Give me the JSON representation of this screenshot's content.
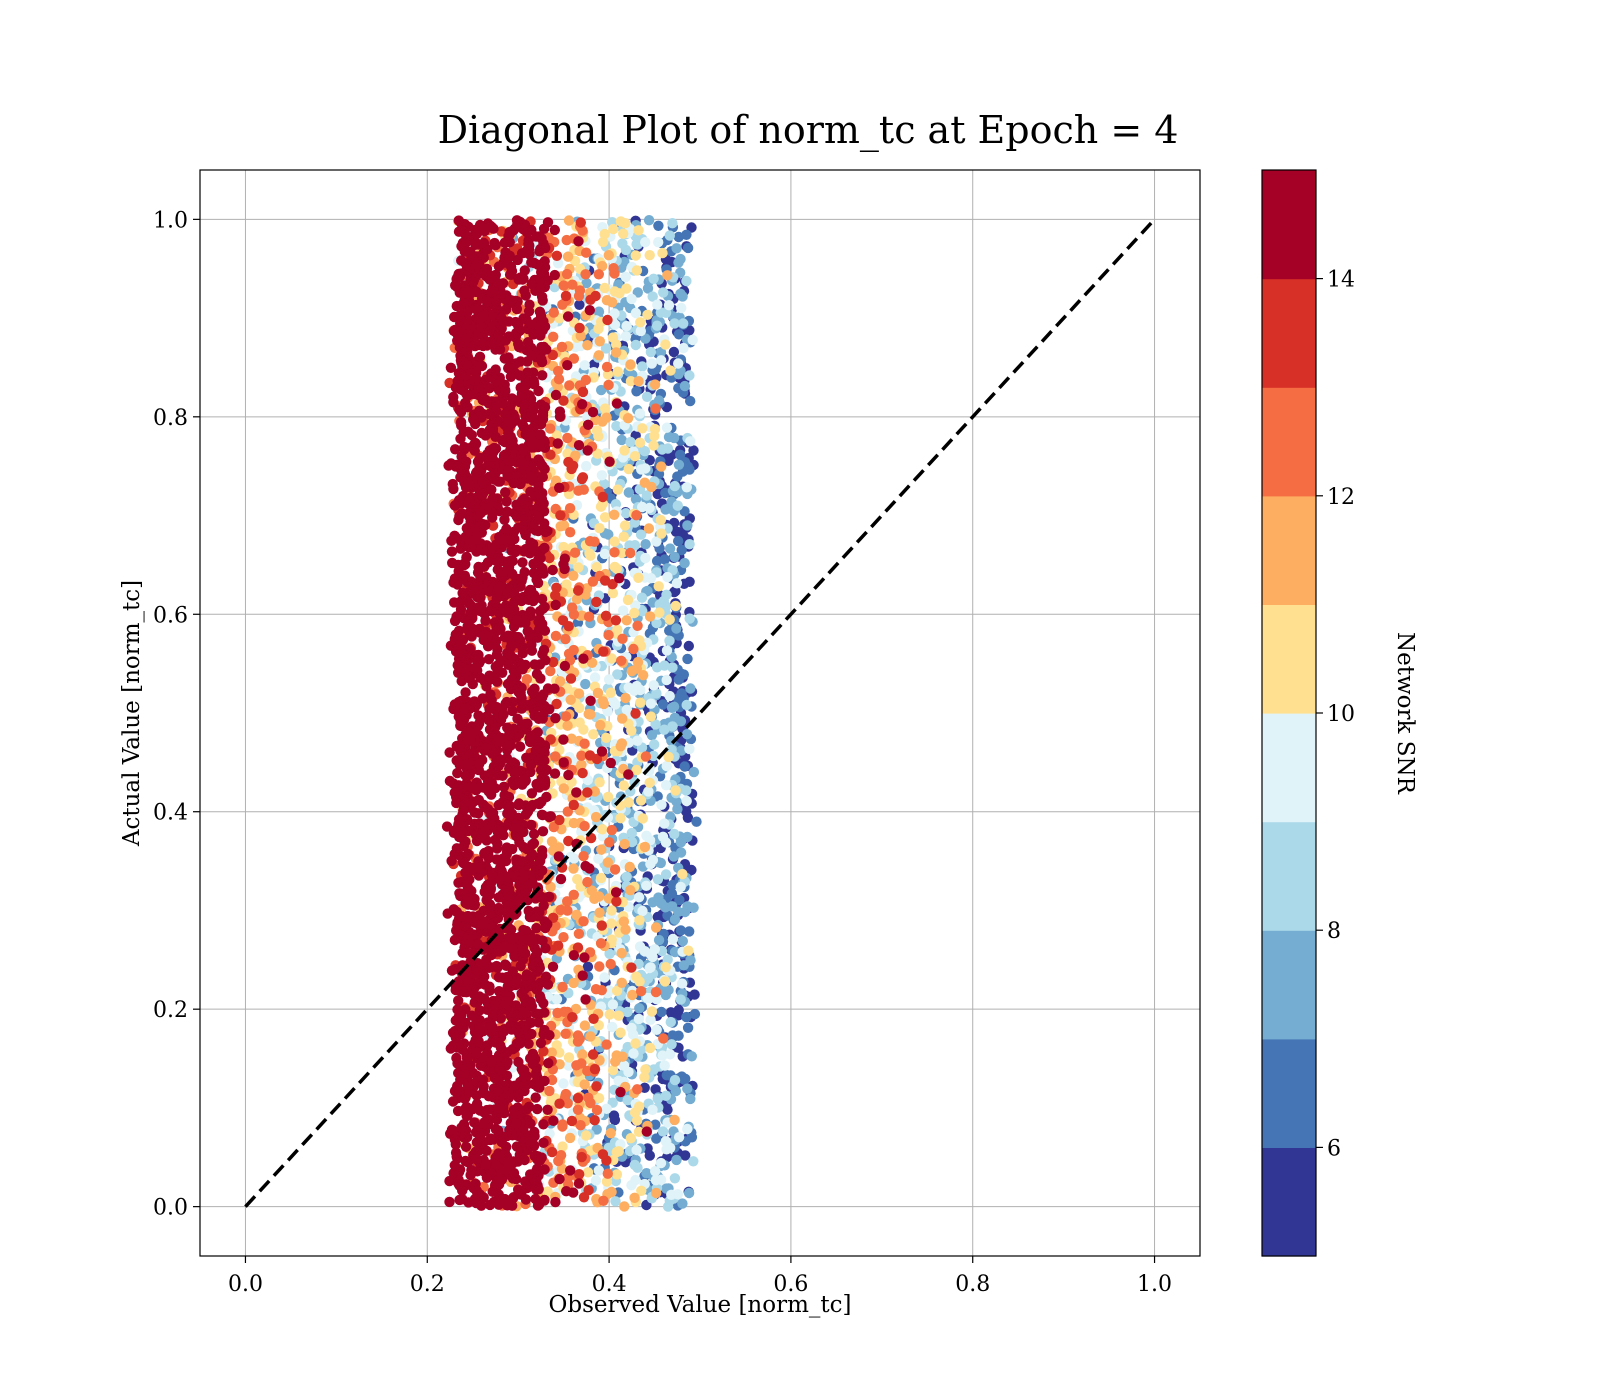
{
  "chart_data": {
    "type": "scatter",
    "title": "Diagonal Plot of norm_tc at Epoch = 4",
    "xlabel": "Observed Value [norm_tc]",
    "ylabel": "Actual Value [norm_tc]",
    "xlim": [
      -0.05,
      1.05
    ],
    "ylim": [
      -0.05,
      1.05
    ],
    "xticks": [
      0.0,
      0.2,
      0.4,
      0.6,
      0.8,
      1.0
    ],
    "yticks": [
      0.0,
      0.2,
      0.4,
      0.6,
      0.8,
      1.0
    ],
    "xtick_labels": [
      "0.0",
      "0.2",
      "0.4",
      "0.6",
      "0.8",
      "1.0"
    ],
    "ytick_labels": [
      "0.0",
      "0.2",
      "0.4",
      "0.6",
      "0.8",
      "1.0"
    ],
    "grid": true,
    "reference_line": {
      "x": [
        0.0,
        1.0
      ],
      "y": [
        0.0,
        1.0
      ],
      "style": "dashed",
      "color": "#000000"
    },
    "scatter_summary": {
      "x_core_range": [
        0.23,
        0.49
      ],
      "x_outlier_max": 0.52,
      "y_range": [
        0.0,
        1.0
      ],
      "dense_high_snr_x_range": [
        0.23,
        0.33
      ],
      "low_snr_x_range": [
        0.45,
        0.51
      ]
    },
    "colorbar": {
      "label": "Network SNR",
      "range": [
        5,
        15
      ],
      "ticks": [
        6,
        8,
        10,
        12,
        14
      ],
      "tick_labels": [
        "6",
        "8",
        "10",
        "12",
        "14"
      ],
      "colors": [
        "#313695",
        "#4575b4",
        "#74add1",
        "#abd9e9",
        "#e0f3f8",
        "#fee090",
        "#fdae61",
        "#f46d43",
        "#d73027",
        "#a50026"
      ]
    }
  }
}
